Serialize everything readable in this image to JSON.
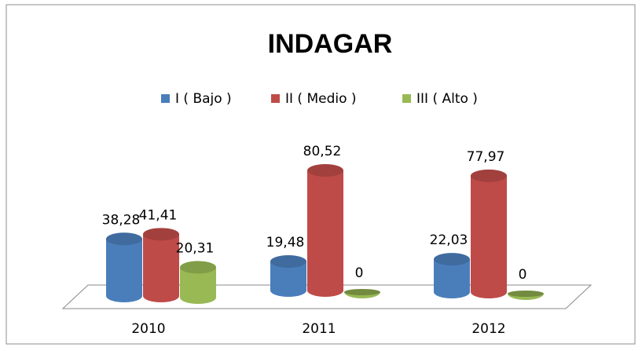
{
  "chart_data": {
    "type": "bar3d",
    "title": "INDAGAR",
    "categories": [
      "2010",
      "2011",
      "2012"
    ],
    "series": [
      {
        "name": "I ( Bajo )",
        "color": "#4a7ebb",
        "values": [
          38.28,
          19.48,
          22.03
        ],
        "value_labels": [
          "38,28",
          "19,48",
          "22,03"
        ]
      },
      {
        "name": "II ( Medio )",
        "color": "#be4b48",
        "values": [
          41.41,
          80.52,
          77.97
        ],
        "value_labels": [
          "41,41",
          "80,52",
          "77,97"
        ]
      },
      {
        "name": "III ( Alto )",
        "color": "#98b954",
        "values": [
          20.31,
          0,
          0
        ],
        "value_labels": [
          "20,31",
          "0",
          "0"
        ]
      }
    ],
    "legend": "top"
  }
}
